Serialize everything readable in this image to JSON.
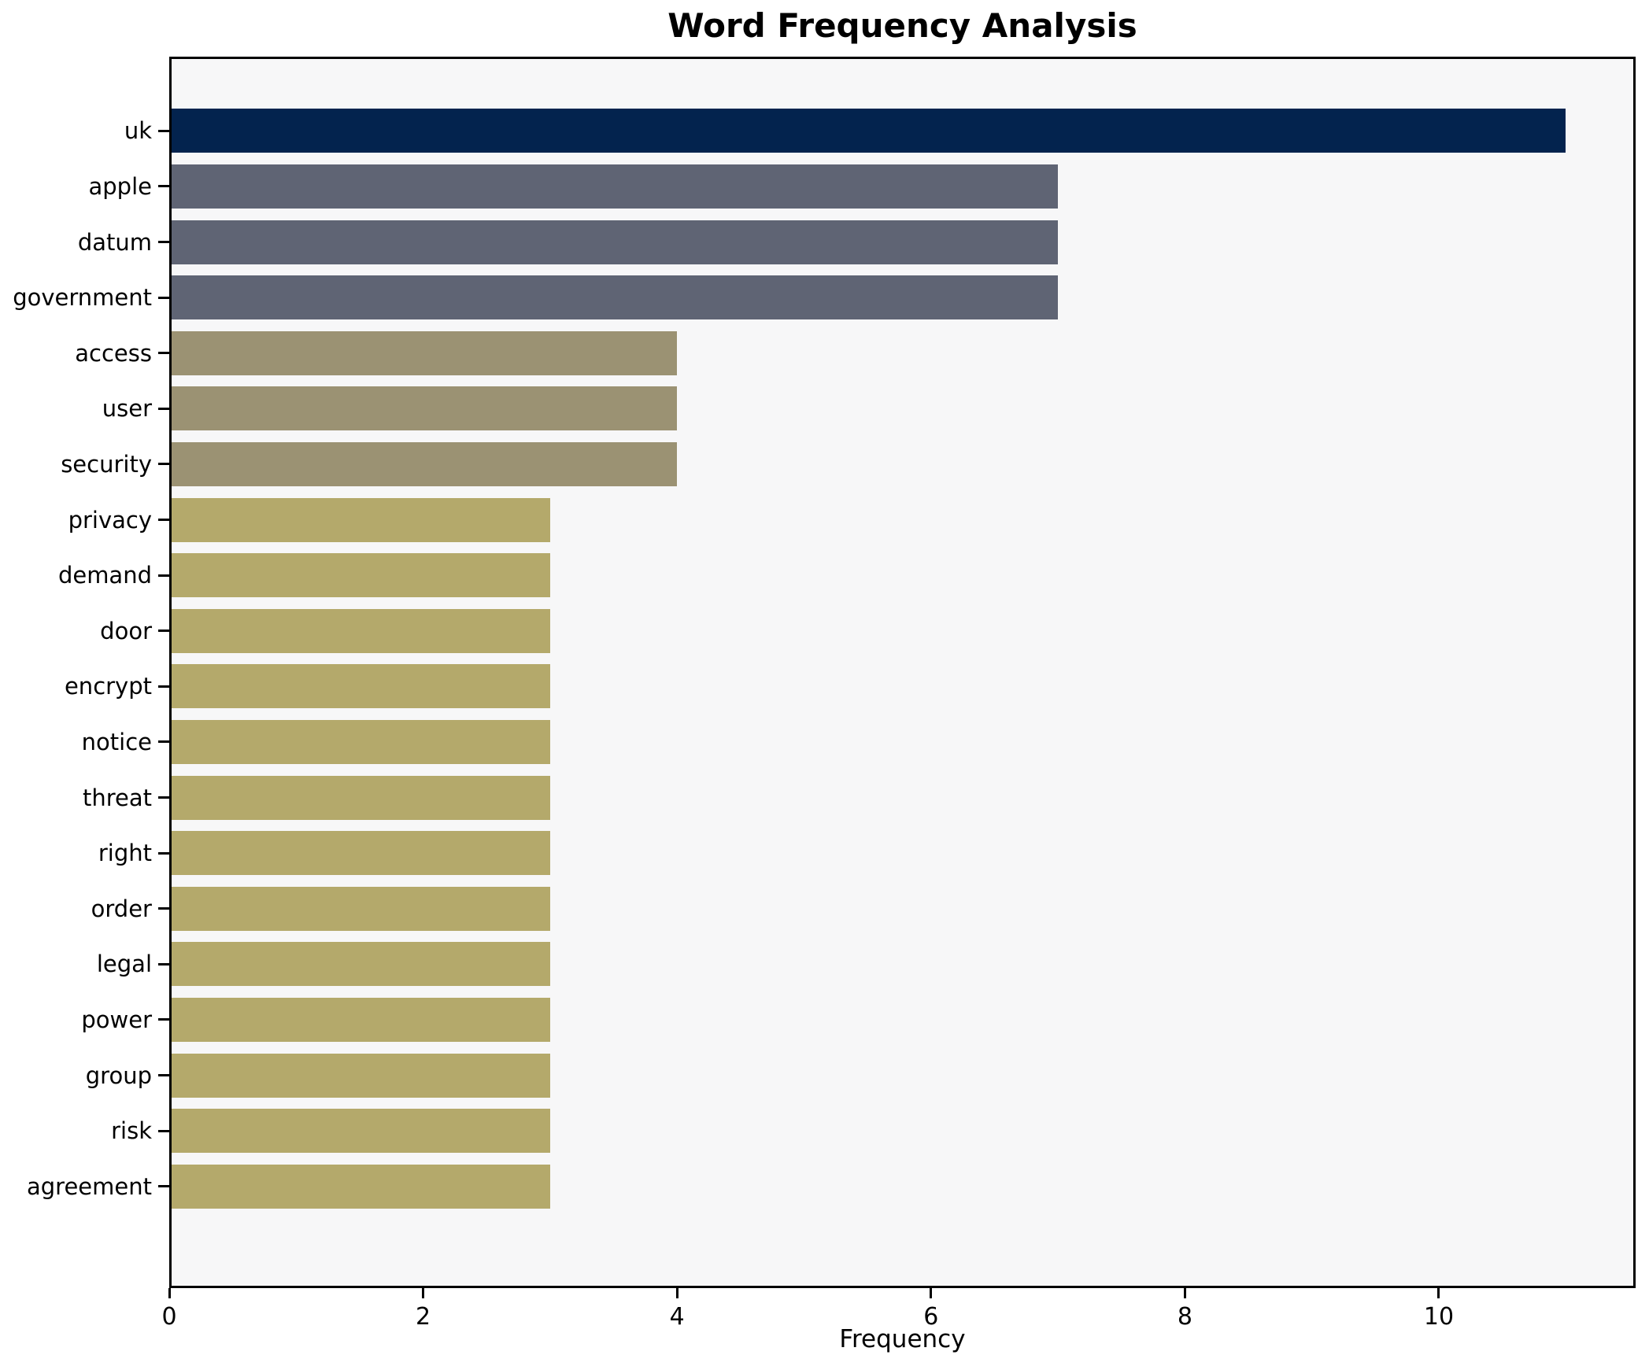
{
  "chart_data": {
    "type": "bar",
    "orientation": "horizontal",
    "title": "Word Frequency Analysis",
    "xlabel": "Frequency",
    "ylabel": "",
    "categories": [
      "uk",
      "apple",
      "datum",
      "government",
      "access",
      "user",
      "security",
      "privacy",
      "demand",
      "door",
      "encrypt",
      "notice",
      "threat",
      "right",
      "order",
      "legal",
      "power",
      "group",
      "risk",
      "agreement"
    ],
    "values": [
      11,
      7,
      7,
      7,
      4,
      4,
      4,
      3,
      3,
      3,
      3,
      3,
      3,
      3,
      3,
      3,
      3,
      3,
      3,
      3
    ],
    "bar_colors": [
      "#03234e",
      "#5f6474",
      "#5f6474",
      "#5f6474",
      "#9b9273",
      "#9b9273",
      "#9b9273",
      "#b4a96b",
      "#b4a96b",
      "#b4a96b",
      "#b4a96b",
      "#b4a96b",
      "#b4a96b",
      "#b4a96b",
      "#b4a96b",
      "#b4a96b",
      "#b4a96b",
      "#b4a96b",
      "#b4a96b",
      "#b4a96b"
    ],
    "xlim": [
      0,
      11.55
    ],
    "xticks": [
      0,
      2,
      4,
      6,
      8,
      10
    ],
    "grid": false,
    "legend_position": "none",
    "plot_background": "#f7f7f8",
    "figure_background": "#ffffff",
    "spine_color": "#000000",
    "text_color": "#000000"
  }
}
